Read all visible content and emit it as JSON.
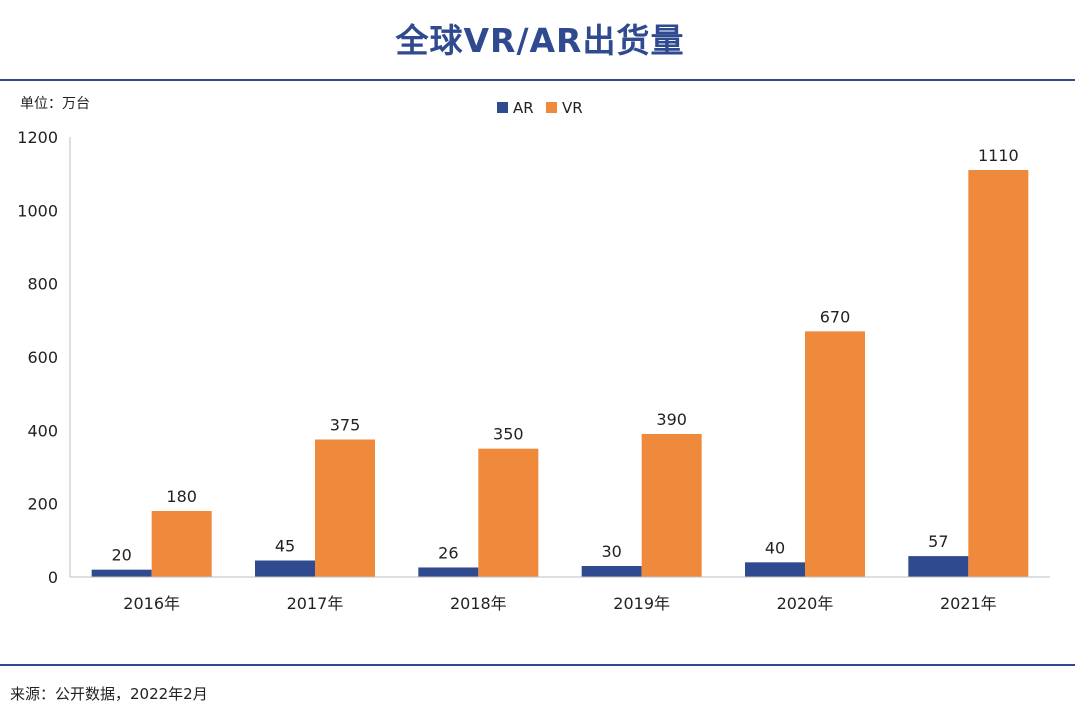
{
  "page": {
    "title": "全球VR/AR出货量",
    "unit_label": "单位：万台",
    "source_note": "来源：公开数据，2022年2月"
  },
  "chart_data": {
    "type": "bar",
    "title": "全球VR/AR出货量",
    "categories": [
      "2016年",
      "2017年",
      "2018年",
      "2019年",
      "2020年",
      "2021年"
    ],
    "series": [
      {
        "name": "AR",
        "color": "#2f4a8f",
        "values": [
          20,
          45,
          26,
          30,
          40,
          57
        ]
      },
      {
        "name": "VR",
        "color": "#ef8a3c",
        "values": [
          180,
          375,
          350,
          390,
          670,
          1110
        ]
      }
    ],
    "ylim": [
      0,
      1200
    ],
    "yticks": [
      0,
      200,
      400,
      600,
      800,
      1000,
      1200
    ],
    "legend_position": "top-center",
    "grid": false,
    "data_labels": true
  }
}
